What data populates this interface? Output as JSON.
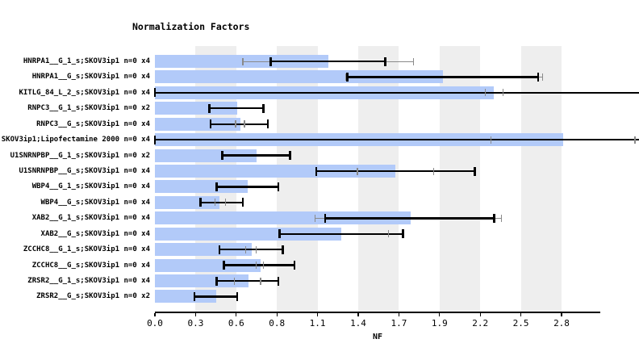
{
  "page": {
    "background": "#ffffff"
  },
  "colors": {
    "bar_fill": "#b2caf9",
    "grid_band": "#eeeeee",
    "error_bar": "#000000",
    "whisker": "#8a8a8a",
    "text": "#000000"
  },
  "chart_data": {
    "type": "bar",
    "orientation": "horizontal",
    "title": "Normalization Factors",
    "xlabel": "NF",
    "xlim": [
      0,
      3.03
    ],
    "xtick_labels": [
      "0.0",
      "0.3",
      "0.6",
      "0.8",
      "1.1",
      "1.4",
      "1.7",
      "1.9",
      "2.2",
      "2.5",
      "2.8"
    ],
    "xtick_interval_value": 0.277,
    "grid": "alternating vertical gray bands between odd tick intervals",
    "legend_position": "none",
    "rows": [
      {
        "label": "HNRPA1__G_1_s;SKOV3ip1 n=0 x4",
        "nf": 1.18,
        "err": [
          0.79,
          1.57
        ],
        "whisker": [
          0.6,
          1.76
        ],
        "err_clipped_right": false
      },
      {
        "label": "HNRPA1__G_s;SKOV3ip1 n=0 x4",
        "nf": 1.96,
        "err": [
          1.31,
          2.61
        ],
        "whisker": [
          1.3,
          2.64
        ],
        "err_clipped_right": false
      },
      {
        "label": "KITLG_84_L_2_s;SKOV3ip1 n=0 x4",
        "nf": 2.31,
        "err": [
          0.0,
          3.3
        ],
        "whisker": [
          2.25,
          2.37
        ],
        "err_clipped_right": true
      },
      {
        "label": "RNPC3__G_1_s;SKOV3ip1 n=0 x2",
        "nf": 0.56,
        "err": [
          0.37,
          0.74
        ],
        "whisker": null,
        "err_clipped_right": false
      },
      {
        "label": "RNPC3__G_s;SKOV3ip1 n=0 x4",
        "nf": 0.58,
        "err": [
          0.38,
          0.77
        ],
        "whisker": [
          0.55,
          0.61
        ],
        "err_clipped_right": false
      },
      {
        "label": "SKOV3ip1;Lipofectamine 2000 n=0 x4",
        "nf": 2.78,
        "err": [
          0.0,
          3.3
        ],
        "whisker": [
          2.29,
          3.27
        ],
        "err_clipped_right": true
      },
      {
        "label": "U1SNRNPBP__G_1_s;SKOV3ip1 n=0 x2",
        "nf": 0.69,
        "err": [
          0.46,
          0.92
        ],
        "whisker": null,
        "err_clipped_right": false
      },
      {
        "label": "U1SNRNPBP__G_s;SKOV3ip1 n=0 x4",
        "nf": 1.64,
        "err": [
          1.1,
          2.18
        ],
        "whisker": [
          1.38,
          1.9
        ],
        "err_clipped_right": false
      },
      {
        "label": "WBP4__G_1_s;SKOV3ip1 n=0 x4",
        "nf": 0.63,
        "err": [
          0.42,
          0.84
        ],
        "whisker": null,
        "err_clipped_right": false
      },
      {
        "label": "WBP4__G_s;SKOV3ip1 n=0 x4",
        "nf": 0.44,
        "err": [
          0.31,
          0.6
        ],
        "whisker": [
          0.41,
          0.48
        ],
        "err_clipped_right": false
      },
      {
        "label": "XAB2__G_1_s;SKOV3ip1 n=0 x4",
        "nf": 1.74,
        "err": [
          1.16,
          2.31
        ],
        "whisker": [
          1.09,
          2.36
        ],
        "err_clipped_right": false
      },
      {
        "label": "XAB2__G_s;SKOV3ip1 n=0 x4",
        "nf": 1.27,
        "err": [
          0.85,
          1.69
        ],
        "whisker": [
          1.59,
          1.59
        ],
        "err_clipped_right": false
      },
      {
        "label": "ZCCHC8__G_1_s;SKOV3ip1 n=0 x4",
        "nf": 0.66,
        "err": [
          0.44,
          0.87
        ],
        "whisker": [
          0.62,
          0.69
        ],
        "err_clipped_right": false
      },
      {
        "label": "ZCCHC8__G_s;SKOV3ip1 n=0 x4",
        "nf": 0.72,
        "err": [
          0.47,
          0.95
        ],
        "whisker": [
          0.69,
          0.74
        ],
        "err_clipped_right": false
      },
      {
        "label": "ZRSR2__G_1_s;SKOV3ip1 n=0 x4",
        "nf": 0.64,
        "err": [
          0.42,
          0.84
        ],
        "whisker": [
          0.54,
          0.72
        ],
        "err_clipped_right": false
      },
      {
        "label": "ZRSR2__G_s;SKOV3ip1 n=0 x2",
        "nf": 0.42,
        "err": [
          0.27,
          0.56
        ],
        "whisker": null,
        "err_clipped_right": false
      }
    ]
  }
}
